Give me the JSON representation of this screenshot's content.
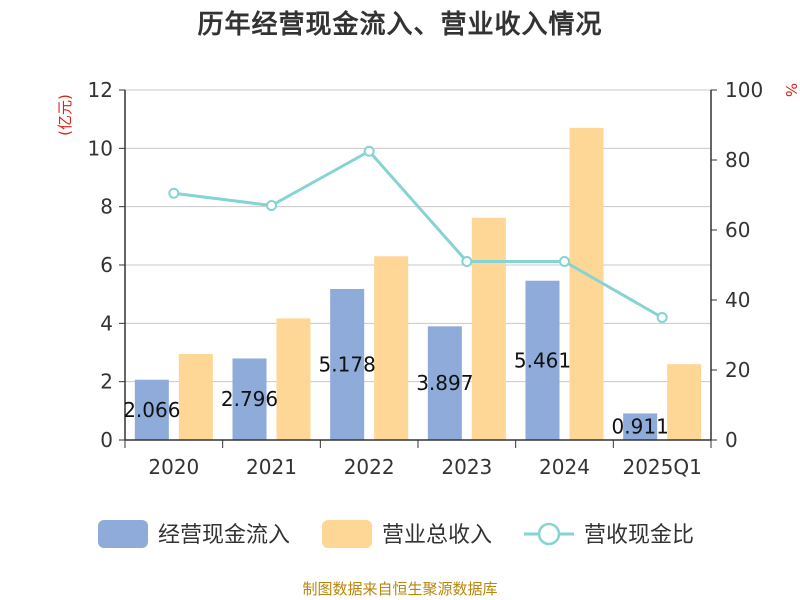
{
  "chart_data": {
    "type": "bar",
    "title": "历年经营现金流入、营业收入情况",
    "categories": [
      "2020",
      "2021",
      "2022",
      "2023",
      "2024",
      "2025Q1"
    ],
    "y_left": {
      "unit": "(亿元)",
      "ylim": [
        0,
        12
      ],
      "ticks": [
        "0",
        "2",
        "4",
        "6",
        "8",
        "10",
        "12"
      ]
    },
    "y_right": {
      "unit": "%",
      "ylim": [
        0,
        100
      ],
      "ticks": [
        "0",
        "20",
        "40",
        "60",
        "80",
        "100"
      ]
    },
    "grid": true,
    "legend_position": "bottom",
    "series": [
      {
        "name": "经营现金流入",
        "type": "bar",
        "axis": "left",
        "color": "#8eabd9",
        "values": [
          2.066,
          2.796,
          5.178,
          3.897,
          5.461,
          0.911
        ],
        "labels": [
          "2.066",
          "2.796",
          "5.178",
          "3.897",
          "5.461",
          "0.911"
        ]
      },
      {
        "name": "营业总收入",
        "type": "bar",
        "axis": "left",
        "color": "#fed797",
        "values": [
          2.95,
          4.17,
          6.3,
          7.62,
          10.7,
          2.6
        ]
      },
      {
        "name": "营收现金比",
        "type": "line",
        "axis": "right",
        "color": "#86d3d3",
        "values": [
          70.5,
          67,
          82.5,
          51,
          51,
          35
        ]
      }
    ]
  },
  "footer": {
    "source": "制图数据来自恒生聚源数据库"
  }
}
